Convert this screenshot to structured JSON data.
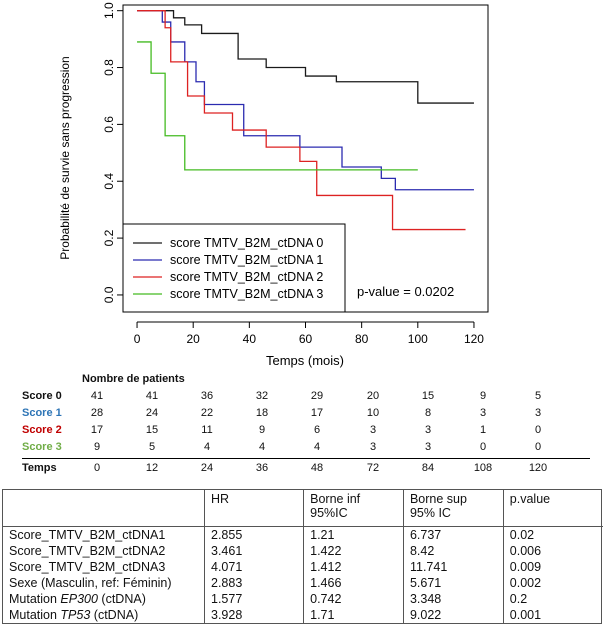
{
  "chart_data": {
    "type": "line",
    "step": true,
    "title": "",
    "xlabel": "Temps (mois)",
    "ylabel": "Probabilité de survie sans progression",
    "xlim": [
      -5,
      125
    ],
    "ylim": [
      -0.06,
      1.02
    ],
    "x_ticks": [
      "0",
      "20",
      "40",
      "60",
      "80",
      "100",
      "120"
    ],
    "y_ticks": [
      "0.0",
      "0.2",
      "0.4",
      "0.6",
      "0.8",
      "1.0"
    ],
    "grid": false,
    "legend_position": "bottom-left",
    "annotation": "p-value = 0.0202",
    "series": [
      {
        "name": "score TMTV_B2M_ctDNA 0",
        "color": "#1a1a1a",
        "x": [
          0,
          13,
          17,
          23,
          36,
          46,
          60,
          71,
          100,
          120
        ],
        "y": [
          1.0,
          0.975,
          0.95,
          0.92,
          0.83,
          0.8,
          0.77,
          0.75,
          0.675,
          0.675
        ]
      },
      {
        "name": "score TMTV_B2M_ctDNA 1",
        "color": "#2b2bb0",
        "x": [
          0,
          9,
          12,
          17,
          21,
          24,
          38,
          58,
          73,
          87,
          92,
          120
        ],
        "y": [
          1.0,
          0.96,
          0.89,
          0.82,
          0.75,
          0.67,
          0.56,
          0.52,
          0.45,
          0.41,
          0.37,
          0.37
        ]
      },
      {
        "name": "score TMTV_B2M_ctDNA 2",
        "color": "#dd2222",
        "x": [
          0,
          10,
          12,
          18,
          24,
          34,
          46,
          58,
          64,
          91,
          117
        ],
        "y": [
          1.0,
          0.94,
          0.82,
          0.7,
          0.64,
          0.58,
          0.52,
          0.47,
          0.35,
          0.23,
          0.23
        ]
      },
      {
        "name": "score TMTV_B2M_ctDNA 3",
        "color": "#44bb22",
        "x": [
          0,
          5,
          10,
          17,
          100
        ],
        "y": [
          0.89,
          0.78,
          0.56,
          0.44,
          0.44
        ]
      }
    ]
  },
  "risk_table": {
    "title": "Nombre de patients",
    "time_label": "Temps",
    "times": [
      "0",
      "12",
      "24",
      "36",
      "48",
      "72",
      "84",
      "108",
      "120"
    ],
    "rows": [
      {
        "label": "Score 0",
        "color": "#111111",
        "values": [
          "41",
          "41",
          "36",
          "32",
          "29",
          "20",
          "15",
          "9",
          "5"
        ]
      },
      {
        "label": "Score 1",
        "color": "#2e75b6",
        "values": [
          "28",
          "24",
          "22",
          "18",
          "17",
          "10",
          "8",
          "3",
          "3"
        ]
      },
      {
        "label": "Score 2",
        "color": "#c00000",
        "values": [
          "17",
          "15",
          "11",
          "9",
          "6",
          "3",
          "3",
          "1",
          "0"
        ]
      },
      {
        "label": "Score 3",
        "color": "#70ad47",
        "values": [
          "9",
          "5",
          "4",
          "4",
          "4",
          "3",
          "3",
          "0",
          "0"
        ]
      }
    ]
  },
  "stats_table": {
    "headers": [
      {
        "line1": "",
        "line2": ""
      },
      {
        "line1": "HR",
        "line2": ""
      },
      {
        "line1": "Borne inf",
        "line2": "95%IC"
      },
      {
        "line1": "Borne sup",
        "line2": "95% IC"
      },
      {
        "line1": "p.value",
        "line2": ""
      }
    ],
    "rows": [
      {
        "pre": "Score_TMTV_B2M_ctDNA1",
        "ital": "",
        "post": "",
        "hr": "2.855",
        "inf": "1.21",
        "sup": "6.737",
        "p": "0.02"
      },
      {
        "pre": "Score_TMTV_B2M_ctDNA2",
        "ital": "",
        "post": "",
        "hr": "3.461",
        "inf": "1.422",
        "sup": "8.42",
        "p": "0.006"
      },
      {
        "pre": "Score_TMTV_B2M_ctDNA3",
        "ital": "",
        "post": "",
        "hr": "4.071",
        "inf": "1.412",
        "sup": "11.741",
        "p": "0.009"
      },
      {
        "pre": "Sexe (Masculin, ref: Féminin)",
        "ital": "",
        "post": "",
        "hr": "2.883",
        "inf": "1.466",
        "sup": "5.671",
        "p": "0.002"
      },
      {
        "pre": "Mutation ",
        "ital": "EP300",
        "post": " (ctDNA)",
        "hr": "1.577",
        "inf": "0.742",
        "sup": "3.348",
        "p": "0.2"
      },
      {
        "pre": "Mutation ",
        "ital": "TP53",
        "post": " (ctDNA)",
        "hr": "3.928",
        "inf": "1.71",
        "sup": "9.022",
        "p": "0.001"
      }
    ]
  }
}
